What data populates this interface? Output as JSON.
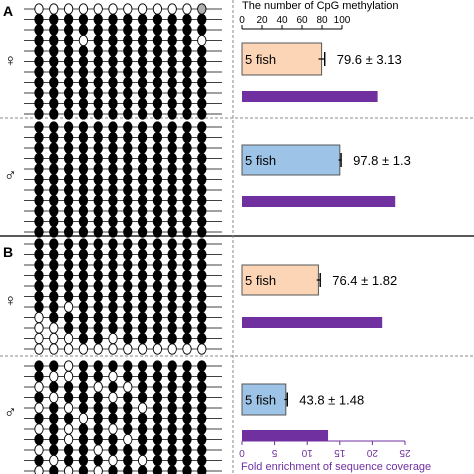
{
  "chart_data": {
    "type": "bar",
    "top_axis": {
      "label": "The number of CpG methylation",
      "ticks": [
        0,
        20,
        40,
        60,
        80,
        100
      ],
      "range": [
        0,
        100
      ]
    },
    "bottom_axis": {
      "label": "Fold enrichment of sequence coverage",
      "ticks": [
        0,
        5,
        10,
        15,
        20,
        25
      ],
      "range": [
        0,
        25
      ],
      "color": "#7030A0",
      "orientation": "upside-down"
    },
    "panels": [
      {
        "label": "A",
        "groups": [
          {
            "sex_symbol": "♀",
            "bar_label": "5 fish",
            "methylation_mean": 79.6,
            "methylation_sd": 3.13,
            "value_text": "79.6 ± 3.13",
            "fold_enrichment": 20.8,
            "bar_color": "#FBD5B5",
            "lollipop_rows": [
              "WWWWWWWWWWWG",
              "BBBBBBBBBBBB",
              "BBBBBBBBBBBB",
              "BBBWBBBBBBBW",
              "BBBBBBBBBBBB",
              "BBBBBBBBBBBB",
              "BBBBBBBBBBBB",
              "BBBBBBBBBBBB",
              "BBBBBBBBBBBB",
              "BBBBBBBBBBBB",
              "BBBBBBBBBBBB"
            ]
          },
          {
            "sex_symbol": "♂",
            "bar_label": "5 fish",
            "methylation_mean": 97.8,
            "methylation_sd": 1.3,
            "value_text": "97.8 ± 1.3",
            "fold_enrichment": 23.5,
            "bar_color": "#9DC3E6",
            "lollipop_rows": [
              "BBBBBBBBBBBB",
              "BBBBBBBBBBBB",
              "BBBBBBBBBBBB",
              "BBBBBBBBBBBB",
              "BBBBBBBBBBBB",
              "BBBBBBBBBBBB",
              "BBBBBBBBBBBB",
              "BBBBBBBBBBBB",
              "BBBBBBBBBBBB",
              "BBBBBBBBBBBB",
              "BBBBBBBBBBBB"
            ]
          }
        ]
      },
      {
        "label": "B",
        "groups": [
          {
            "sex_symbol": "♀",
            "bar_label": "5 fish",
            "methylation_mean": 76.4,
            "methylation_sd": 1.82,
            "value_text": "76.4 ± 1.82",
            "fold_enrichment": 21.5,
            "bar_color": "#FBD5B5",
            "lollipop_rows": [
              "BBBBBBBBBBBB",
              "BBBBBBBBBBBB",
              "BBBBBBBBBBBB",
              "BBBBBBBBBBBB",
              "BBBBBBBBBBBB",
              "BBBBBBBBBBBB",
              "BBWBBBBBBBBB",
              "WBBBBBBBBBBB",
              "WWBBBBBBBBBB",
              "WWWBBWBBBBBB",
              "WWWWWWWWWWWW"
            ]
          },
          {
            "sex_symbol": "♂",
            "bar_label": "5 fish",
            "methylation_mean": 43.8,
            "methylation_sd": 1.48,
            "value_text": "43.8 ± 1.48",
            "fold_enrichment": 13.2,
            "bar_color": "#9DC3E6",
            "lollipop_rows": [
              "BBWBBBBBBBBB",
              "BWWBBWBBBBBB",
              "WBBBWBWBBBBB",
              "BWBBBWBBBBBB",
              "WBWBBBBWBBBB",
              "BBBWBBBBBBBB",
              "WBWBBWBBBBBB",
              "BBWBBBWBBBBB",
              "WBBBWBBBBBBB",
              "BWBBBWBWBBBB",
              "WBWBWBBBBBBB"
            ]
          }
        ]
      }
    ]
  }
}
